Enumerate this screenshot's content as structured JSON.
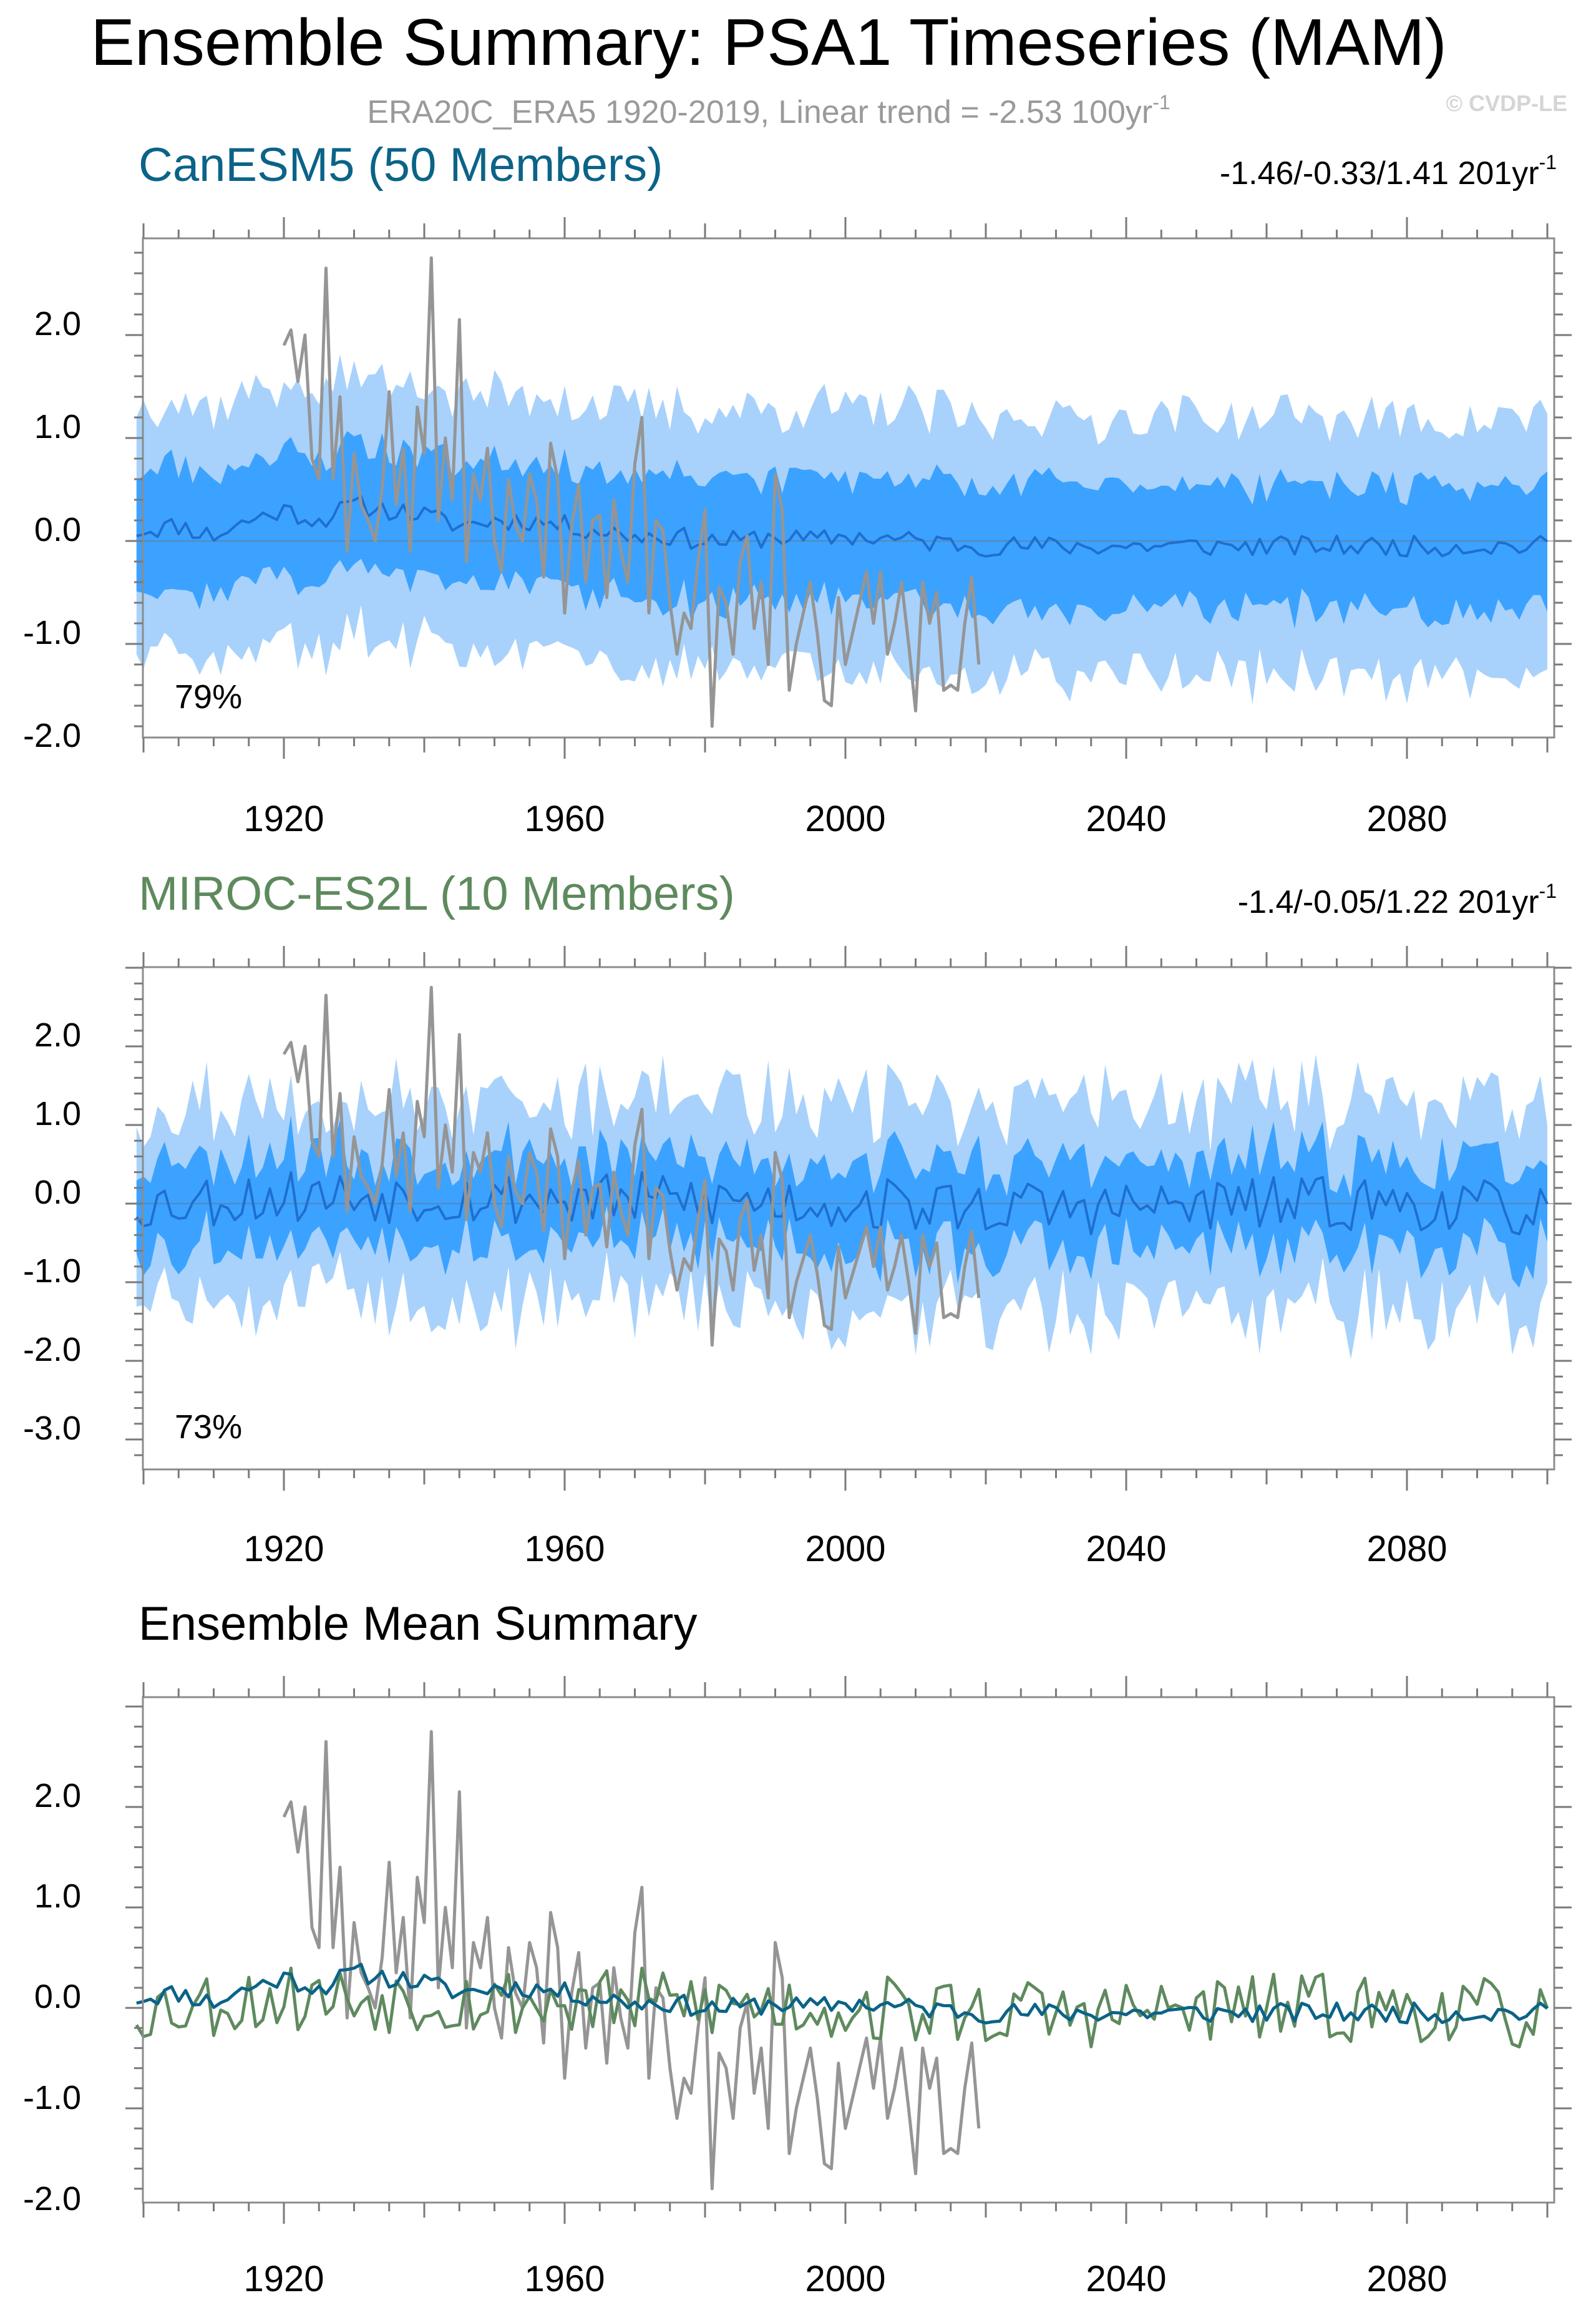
{
  "title": "Ensemble Summary: PSA1 Timeseries (MAM)",
  "subtitle": "ERA20C_ERA5 1920-2019, Linear trend = -2.53 100yr",
  "subtitle_sup": "-1",
  "watermark": "© CVDP-LE",
  "colors": {
    "canesm": "#0b6388",
    "miroc": "#5e8a5e",
    "obs": "#959595",
    "outer_band": "#a8d2fb",
    "inner_band": "#3ca2ff",
    "ens_mean_line": "#1e6fd0"
  },
  "chart_data": [
    {
      "type": "area",
      "title": "CanESM5 (50 Members)",
      "trend_label": "-1.46/-0.33/1.41 201yr",
      "trend_sup": "-1",
      "percent_label": "79%",
      "xlim": [
        1899,
        2100
      ],
      "ylim": [
        -2.2,
        2.8
      ],
      "yticks": [
        "2.0",
        "1.0",
        "0.0",
        "-1.0",
        "-2.0"
      ],
      "xticks": [
        "1920",
        "1960",
        "2000",
        "2040",
        "2080"
      ],
      "series": [
        {
          "name": "ensemble mean",
          "anchors": [
            [
              1899,
              0.1
            ],
            [
              1905,
              0.15
            ],
            [
              1910,
              0.05
            ],
            [
              1915,
              0.2
            ],
            [
              1920,
              0.3
            ],
            [
              1925,
              0.2
            ],
            [
              1930,
              0.35
            ],
            [
              1935,
              0.3
            ],
            [
              1940,
              0.25
            ],
            [
              1945,
              0.15
            ],
            [
              1950,
              0.2
            ],
            [
              1955,
              0.2
            ],
            [
              1960,
              0.15
            ],
            [
              1965,
              0.1
            ],
            [
              1970,
              0.05
            ],
            [
              1975,
              0.05
            ],
            [
              1980,
              0.0
            ],
            [
              1985,
              0.0
            ],
            [
              1990,
              0.05
            ],
            [
              1995,
              0.0
            ],
            [
              2000,
              0.05
            ],
            [
              2010,
              0.0
            ],
            [
              2020,
              -0.05
            ],
            [
              2040,
              -0.05
            ],
            [
              2060,
              -0.05
            ],
            [
              2080,
              -0.05
            ],
            [
              2100,
              -0.05
            ]
          ],
          "jitter": 0.1
        },
        {
          "name": "inner band half-width (25-75%)",
          "anchors": [
            [
              1899,
              0.6
            ],
            [
              2100,
              0.6
            ]
          ],
          "jitter": 0.12
        },
        {
          "name": "outer band half-width (10-90%)",
          "anchors": [
            [
              1899,
              1.25
            ],
            [
              2100,
              1.25
            ]
          ],
          "jitter": 0.2
        }
      ],
      "obs": {
        "name": "ERA20C_ERA5",
        "x_start": 1920,
        "values": [
          1.9,
          2.05,
          1.55,
          2.0,
          0.8,
          0.6,
          2.65,
          0.6,
          1.4,
          -0.1,
          0.85,
          0.35,
          0.2,
          0.0,
          0.5,
          1.45,
          0.35,
          0.9,
          -0.1,
          1.3,
          0.85,
          2.75,
          0.2,
          1.0,
          0.4,
          2.15,
          -0.2,
          0.65,
          0.4,
          0.9,
          0.0,
          -0.3,
          0.6,
          0.15,
          0.0,
          0.65,
          0.4,
          -0.35,
          0.95,
          0.6,
          -0.7,
          0.15,
          0.55,
          -0.4,
          0.2,
          0.25,
          -0.55,
          0.4,
          -0.1,
          -0.4,
          0.75,
          1.2,
          -0.7,
          0.2,
          0.1,
          -0.6,
          -1.1,
          -0.7,
          -0.85,
          -0.2,
          0.3,
          -1.8,
          -0.45,
          -0.6,
          -1.1,
          -0.2,
          0.05,
          -0.85,
          -0.4,
          -1.2,
          0.65,
          0.3,
          -1.45,
          -1.0,
          -0.7,
          -0.4,
          -0.9,
          -1.55,
          -1.6,
          -0.55,
          -1.2,
          -0.9,
          -0.6,
          -0.3,
          -0.8,
          -0.3,
          -1.1,
          -0.8,
          -0.4,
          -1.0,
          -1.65,
          -0.4,
          -0.8,
          -0.5,
          -1.45,
          -1.4,
          -1.45,
          -0.8,
          -0.35,
          -1.2
        ]
      }
    },
    {
      "type": "area",
      "title": "MIROC-ES2L (10 Members)",
      "trend_label": "-1.4/-0.05/1.22 201yr",
      "trend_sup": "-1",
      "percent_label": "73%",
      "xlim": [
        1899,
        2100
      ],
      "ylim": [
        -3.5,
        2.9
      ],
      "yticks": [
        "2.0",
        "1.0",
        "0.0",
        "-1.0",
        "-2.0",
        "-3.0"
      ],
      "xticks": [
        "1920",
        "1960",
        "2000",
        "2040",
        "2080"
      ],
      "series": [
        {
          "name": "ensemble mean",
          "anchors": [
            [
              1899,
              0.0
            ],
            [
              1920,
              0.1
            ],
            [
              1940,
              0.1
            ],
            [
              1960,
              0.05
            ],
            [
              1980,
              0.05
            ],
            [
              2000,
              0.0
            ],
            [
              2020,
              -0.05
            ],
            [
              2040,
              -0.05
            ],
            [
              2060,
              0.0
            ],
            [
              2080,
              0.0
            ],
            [
              2100,
              -0.1
            ]
          ],
          "jitter": 0.35
        },
        {
          "name": "inner band half-width (25-75%)",
          "anchors": [
            [
              1899,
              0.55
            ],
            [
              2100,
              0.55
            ]
          ],
          "jitter": 0.18
        },
        {
          "name": "outer band half-width (10-90%)",
          "anchors": [
            [
              1899,
              1.3
            ],
            [
              2100,
              1.3
            ]
          ],
          "jitter": 0.35
        }
      ],
      "obs_ref": 0
    },
    {
      "type": "line",
      "title": "Ensemble Mean Summary",
      "xlim": [
        1899,
        2100
      ],
      "ylim": [
        -2.2,
        2.8
      ],
      "yticks": [
        "2.0",
        "1.0",
        "0.0",
        "-1.0",
        "-2.0"
      ],
      "xticks": [
        "1920",
        "1960",
        "2000",
        "2040",
        "2080"
      ],
      "series": [
        {
          "name": "CanESM5 ensemble mean",
          "ref": "0.series.0"
        },
        {
          "name": "MIROC-ES2L ensemble mean",
          "ref": "1.series.0"
        },
        {
          "name": "ERA20C_ERA5",
          "ref": "0.obs"
        }
      ]
    }
  ]
}
